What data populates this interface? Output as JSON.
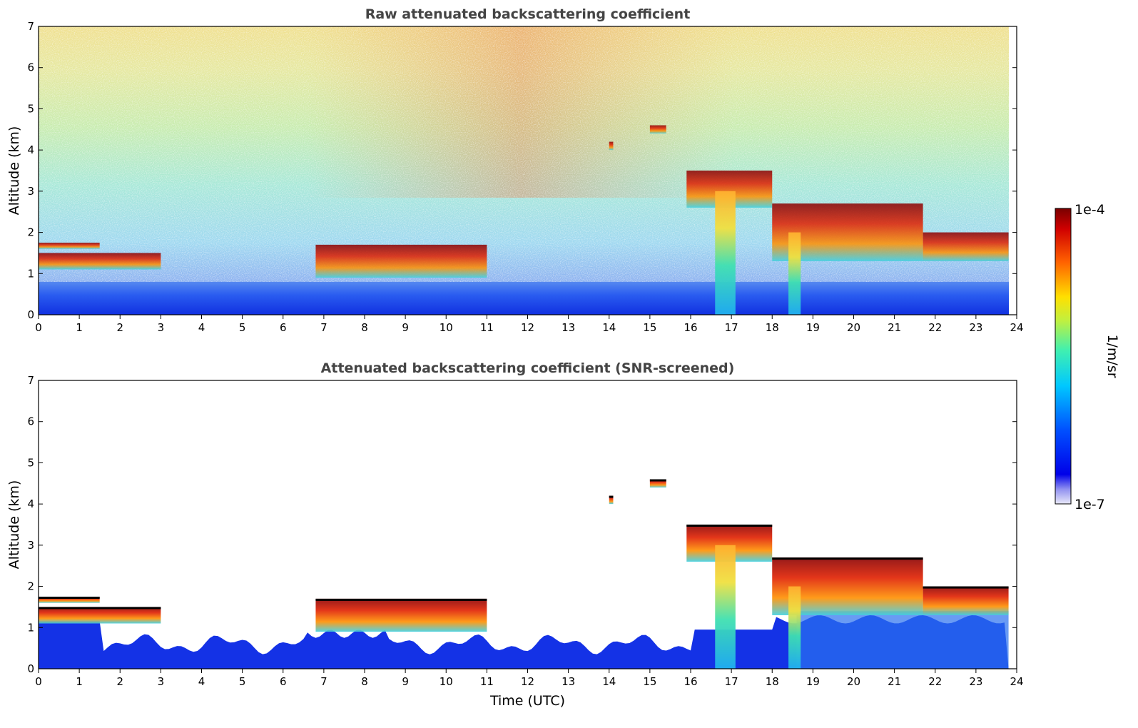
{
  "chart_data": [
    {
      "type": "heatmap",
      "title": "Raw attenuated backscattering coefficient",
      "xlabel": "",
      "ylabel": "Altitude (km)",
      "xlim": [
        0,
        24
      ],
      "ylim": [
        0,
        7
      ],
      "xticks": [
        "0",
        "1",
        "2",
        "3",
        "4",
        "5",
        "6",
        "7",
        "8",
        "9",
        "10",
        "11",
        "12",
        "13",
        "14",
        "15",
        "16",
        "17",
        "18",
        "19",
        "20",
        "21",
        "22",
        "23",
        "24"
      ],
      "yticks": [
        "0",
        "1",
        "2",
        "3",
        "4",
        "5",
        "6",
        "7"
      ],
      "data_end_hour": 23.8,
      "layers": [
        {
          "name": "cloud",
          "x": [
            0,
            1.5
          ],
          "altitude": [
            1.6,
            1.75
          ]
        },
        {
          "name": "cloud",
          "x": [
            0,
            3.0
          ],
          "altitude": [
            1.1,
            1.5
          ]
        },
        {
          "name": "cloud",
          "x": [
            6.8,
            11.0
          ],
          "altitude": [
            0.9,
            1.7
          ]
        },
        {
          "name": "cloud",
          "x": [
            14.0,
            14.1
          ],
          "altitude": [
            4.0,
            4.2
          ]
        },
        {
          "name": "cloud",
          "x": [
            15.0,
            15.4
          ],
          "altitude": [
            4.4,
            4.6
          ]
        },
        {
          "name": "cloud",
          "x": [
            15.9,
            18.0
          ],
          "altitude": [
            2.6,
            3.5
          ]
        },
        {
          "name": "cloud",
          "x": [
            18.0,
            21.7
          ],
          "altitude": [
            1.3,
            2.7
          ]
        },
        {
          "name": "cloud",
          "x": [
            21.7,
            23.8
          ],
          "altitude": [
            1.3,
            2.0
          ]
        },
        {
          "name": "precipitation",
          "x": [
            16.6,
            17.1
          ],
          "altitude": [
            0,
            3.0
          ]
        },
        {
          "name": "precipitation",
          "x": [
            18.4,
            18.7
          ],
          "altitude": [
            0,
            2.0
          ]
        }
      ]
    },
    {
      "type": "heatmap",
      "title": "Attenuated backscattering coefficient (SNR-screened)",
      "xlabel": "Time (UTC)",
      "ylabel": "Altitude (km)",
      "xlim": [
        0,
        24
      ],
      "ylim": [
        0,
        7
      ],
      "xticks": [
        "0",
        "1",
        "2",
        "3",
        "4",
        "5",
        "6",
        "7",
        "8",
        "9",
        "10",
        "11",
        "12",
        "13",
        "14",
        "15",
        "16",
        "17",
        "18",
        "19",
        "20",
        "21",
        "22",
        "23",
        "24"
      ],
      "yticks": [
        "0",
        "1",
        "2",
        "3",
        "4",
        "5",
        "6",
        "7"
      ],
      "data_end_hour": 23.8
    }
  ],
  "colorbar": {
    "label": "1/m/sr",
    "max_label": "1e-4",
    "min_label": "1e-7",
    "scale": "log",
    "range": [
      1e-07,
      0.0001
    ],
    "colors": [
      "#e8e8f8",
      "#0000e0",
      "#0050ff",
      "#00c8ff",
      "#40f0b0",
      "#c0f040",
      "#ffe000",
      "#ff6000",
      "#d00000",
      "#7a0000"
    ]
  }
}
